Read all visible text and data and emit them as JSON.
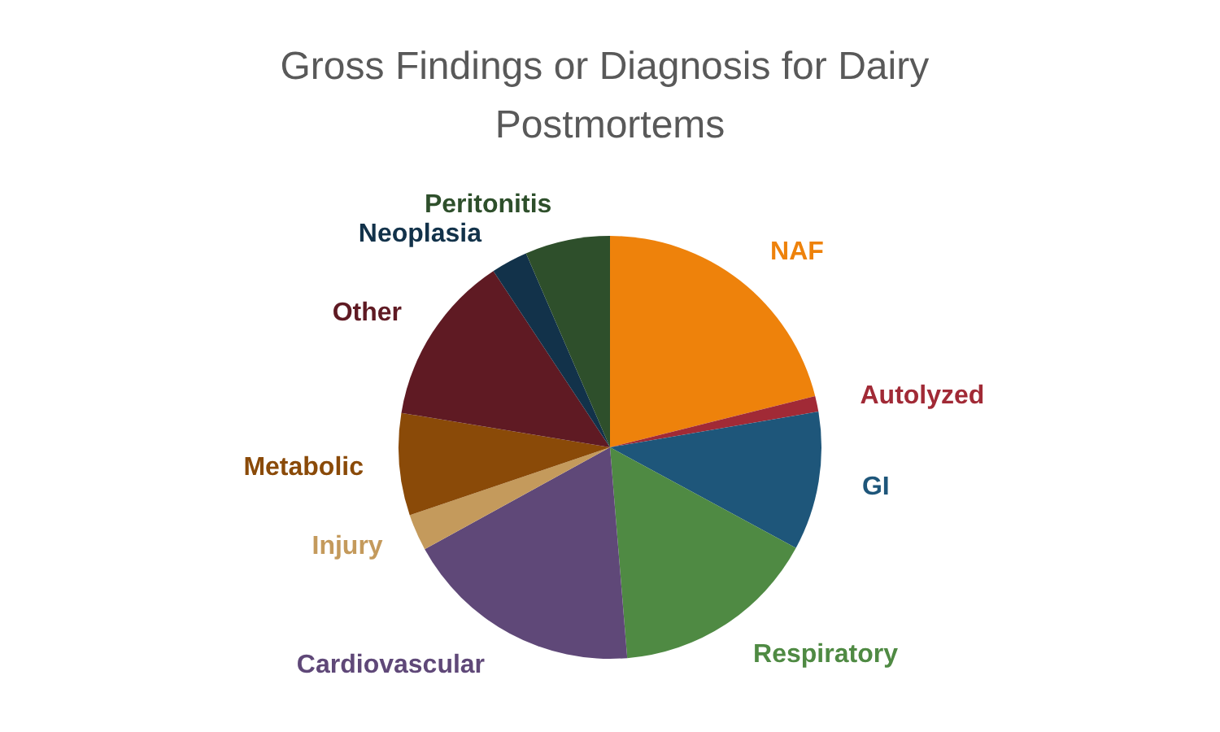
{
  "chart_data": {
    "type": "pie",
    "title": "Gross Findings or Diagnosis for Dairy Postmortems",
    "categories": [
      "NAF",
      "Autolyzed",
      "GI",
      "Respiratory",
      "Cardiovascular",
      "Injury",
      "Metabolic",
      "Other",
      "Neoplasia",
      "Peritonitis"
    ],
    "values": [
      21.1,
      1.2,
      10.6,
      15.8,
      18.3,
      2.8,
      7.8,
      13.1,
      2.8,
      6.5
    ],
    "colors": [
      "#ee820b",
      "#a12a36",
      "#1e567a",
      "#4f8a43",
      "#5f4878",
      "#c49a5c",
      "#8a4a08",
      "#5f1a23",
      "#12324a",
      "#2e4f2b"
    ]
  }
}
